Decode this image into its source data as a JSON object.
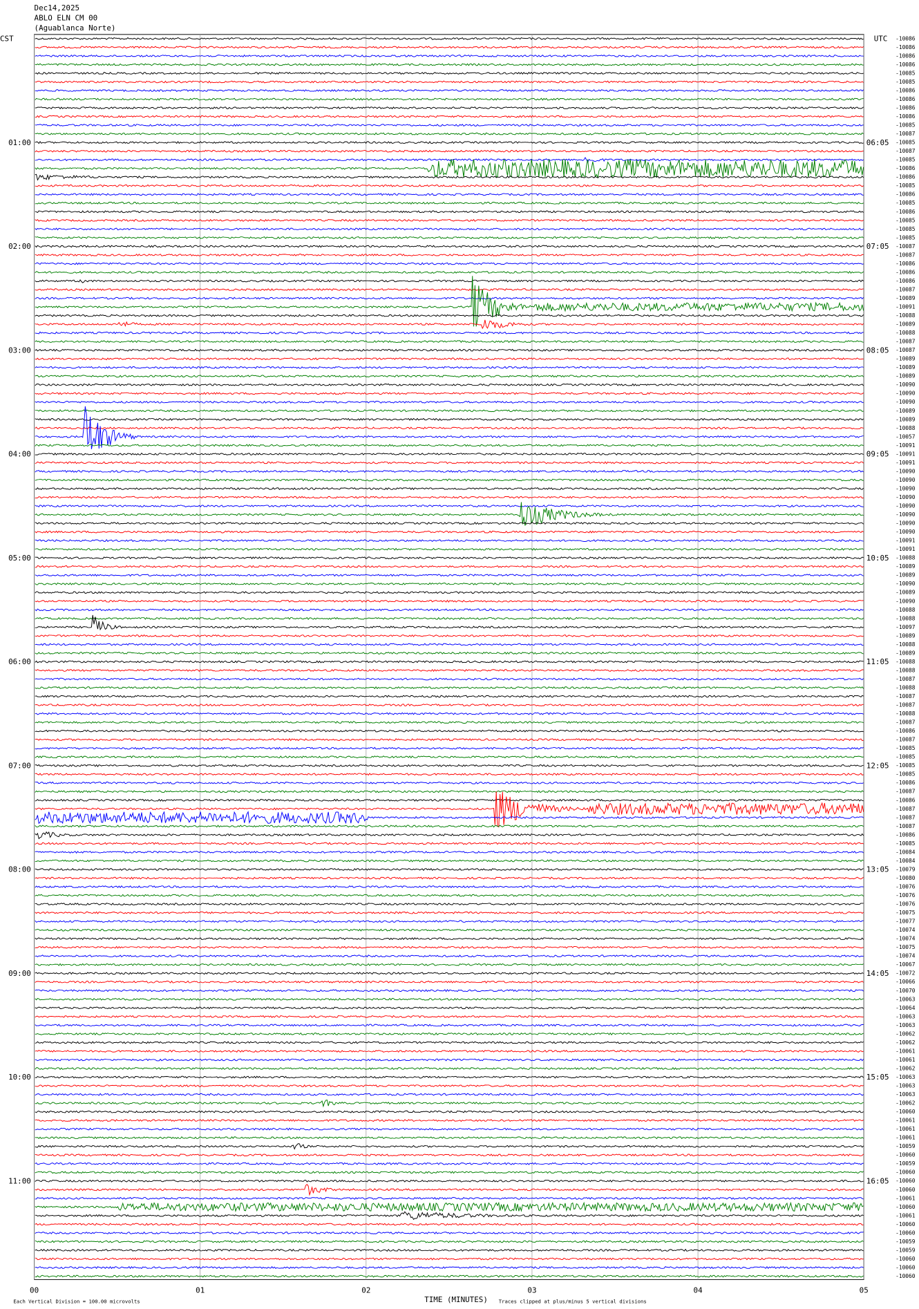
{
  "header": {
    "date": "Dec14,2025",
    "station": "ABLO ELN CM 00",
    "location": "(Aguablanca Norte)"
  },
  "left_label": "CST",
  "right_label": "UTC",
  "left_times": [
    "01:00",
    "02:00",
    "03:00",
    "04:00",
    "05:00",
    "06:00",
    "07:00",
    "08:00",
    "09:00",
    "10:00",
    "11:00"
  ],
  "right_times": [
    "06:05",
    "07:05",
    "08:05",
    "09:05",
    "10:05",
    "11:05",
    "12:05",
    "13:05",
    "14:05",
    "15:05",
    "16:05"
  ],
  "x_ticks": [
    "00",
    "01",
    "02",
    "03",
    "04",
    "05"
  ],
  "x_title": "TIME (MINUTES)",
  "footer": {
    "scale": "Each Vertical Division =  100.00 microvolts",
    "clip": "Traces clipped at plus/minus 5 vertical divisions"
  },
  "trace_colors": [
    "#000000",
    "#ff0000",
    "#0000ff",
    "#007f00"
  ],
  "line_offsets": [
    -10086,
    -10086,
    -10086,
    -10086,
    -10085,
    -10085,
    -10086,
    -10086,
    -10086,
    -10086,
    -10085,
    -10087,
    -10085,
    -10087,
    -10085,
    -10086,
    -10086,
    -10085,
    -10086,
    -10085,
    -10086,
    -10085,
    -10085,
    -10085,
    -10087,
    -10087,
    -10086,
    -10086,
    -10086,
    -10087,
    -10089,
    -10091,
    -10088,
    -10089,
    -10088,
    -10087,
    -10087,
    -10089,
    -10089,
    -10089,
    -10090,
    -10090,
    -10090,
    -10089,
    -10089,
    -10088,
    -10057,
    -10091,
    -10091,
    -10091,
    -10090,
    -10090,
    -10090,
    -10090,
    -10090,
    -10090,
    -10090,
    -10090,
    -10091,
    -10091,
    -10088,
    -10089,
    -10089,
    -10090,
    -10089,
    -10090,
    -10088,
    -10088,
    -10097,
    -10089,
    -10088,
    -10089,
    -10088,
    -10088,
    -10087,
    -10088,
    -10087,
    -10087,
    -10088,
    -10087,
    -10086,
    -10087,
    -10085,
    -10085,
    -10085,
    -10085,
    -10086,
    -10087,
    -10086,
    -10087,
    -10087,
    -10087,
    -10086,
    -10085,
    -10084,
    -10084,
    -10079,
    -10080,
    -10076,
    -10076,
    -10076,
    -10075,
    -10077,
    -10074,
    -10074,
    -10075,
    -10074,
    -10067,
    -10072,
    -10066,
    -10070,
    -10063,
    -10064,
    -10063,
    -10063,
    -10062,
    -10062,
    -10061,
    -10061,
    -10062,
    -10063,
    -10063,
    -10063,
    -10062,
    -10060,
    -10061,
    -10061,
    -10061,
    -10059,
    -10060,
    -10059,
    -10060,
    -10060,
    -10060,
    -10061,
    -10060,
    -10061,
    -10060,
    -10060,
    -10059,
    -10059,
    -10060,
    -10060,
    -10060
  ]
}
